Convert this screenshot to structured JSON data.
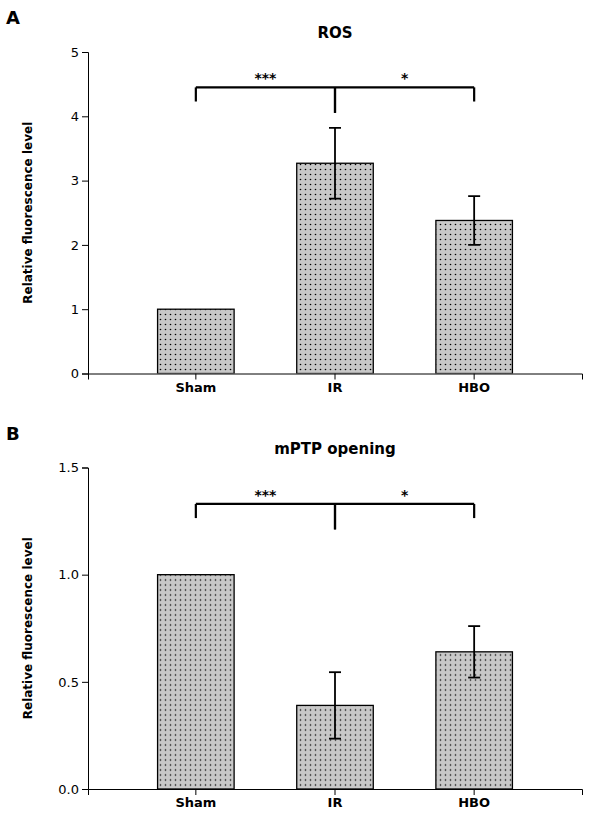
{
  "chart_data": [
    {
      "type": "bar",
      "panel_label": "A",
      "title": "ROS",
      "categories": [
        "Sham",
        "IR",
        "HBO"
      ],
      "values": [
        1.0,
        3.27,
        2.38
      ],
      "errors": [
        0.0,
        0.55,
        0.38
      ],
      "color": "#c8c8c8",
      "ylim": [
        0,
        5
      ],
      "yticks": [
        0,
        1,
        2,
        3,
        4,
        5
      ],
      "ylabel": "Relative fluorescence level",
      "annotations": [
        {
          "text": "***",
          "from": "Sham",
          "to": "IR",
          "y": 4.45
        },
        {
          "text": "*",
          "from": "IR",
          "to": "HBO",
          "y": 4.45
        }
      ],
      "grid": false
    },
    {
      "type": "bar",
      "panel_label": "B",
      "title": "mPTP opening",
      "categories": [
        "Sham",
        "IR",
        "HBO"
      ],
      "values": [
        1.0,
        0.39,
        0.64
      ],
      "errors": [
        0.0,
        0.155,
        0.12
      ],
      "color": "#c8c8c8",
      "ylim": [
        0,
        1.5
      ],
      "yticks": [
        {
          "value": 0,
          "label": "0.0"
        },
        0.5,
        {
          "value": 1,
          "label": "1.0"
        },
        1.5
      ],
      "ylabel": "Relative fluorescence level",
      "annotations": [
        {
          "text": "***",
          "from": "Sham",
          "to": "IR",
          "y": 1.33
        },
        {
          "text": "*",
          "from": "IR",
          "to": "HBO",
          "y": 1.33
        }
      ],
      "grid": false
    }
  ]
}
